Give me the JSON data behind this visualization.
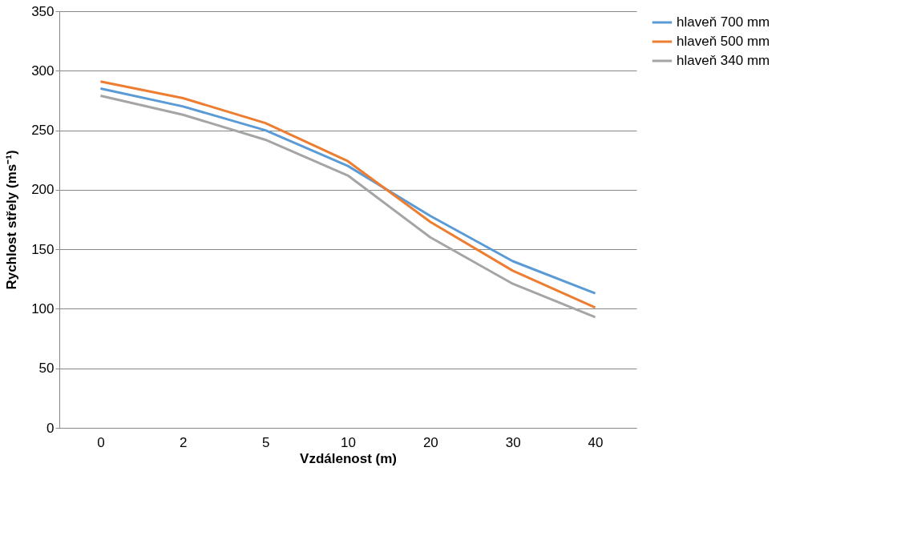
{
  "chart_data": {
    "type": "line",
    "xlabel": "Vzdálenost (m)",
    "ylabel": "Rychlost střely (ms⁻¹)",
    "categories": [
      "0",
      "2",
      "5",
      "10",
      "20",
      "30",
      "40"
    ],
    "series": [
      {
        "name": "hlaveň 700 mm",
        "color": "#5b9bd5",
        "values": [
          285,
          270,
          250,
          220,
          178,
          140,
          113
        ]
      },
      {
        "name": "hlaveň 500 mm",
        "color": "#ed7d31",
        "values": [
          291,
          277,
          256,
          224,
          173,
          132,
          101
        ]
      },
      {
        "name": "hlaveň 340 mm",
        "color": "#a5a5a5",
        "values": [
          279,
          263,
          242,
          212,
          160,
          121,
          93
        ]
      }
    ],
    "ylim": [
      0,
      350
    ],
    "yticks": [
      0,
      50,
      100,
      150,
      200,
      250,
      300,
      350
    ],
    "grid": "y",
    "legend": "right",
    "marker": "none",
    "line_style": "solid"
  }
}
